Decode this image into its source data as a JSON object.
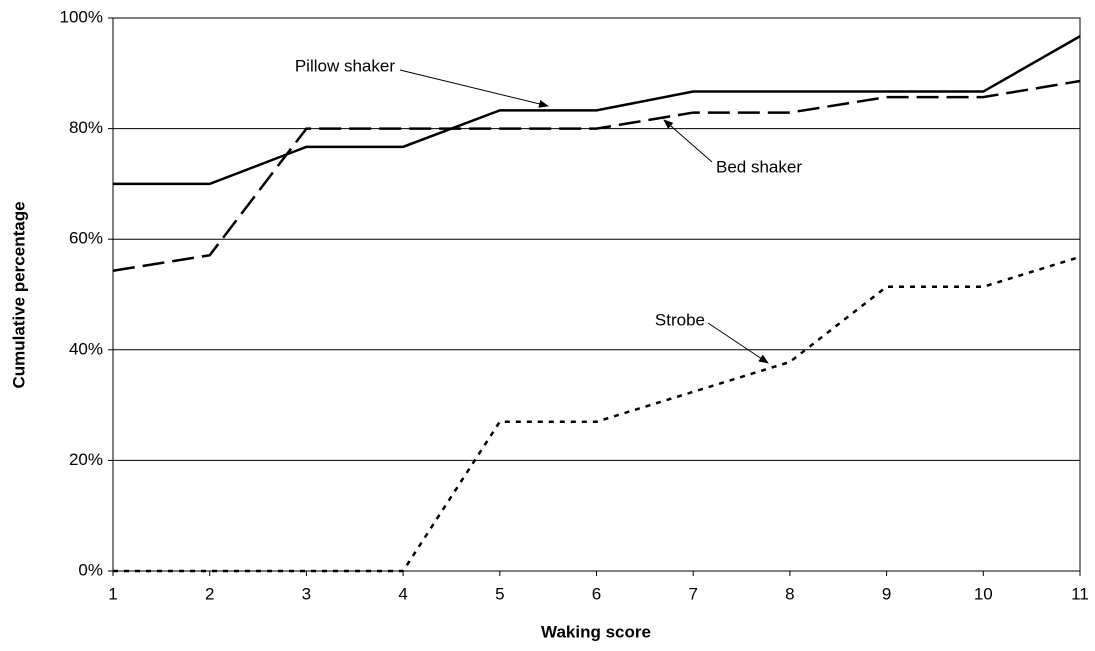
{
  "chart_data": {
    "type": "line",
    "xlabel": "Waking score",
    "ylabel": "Cumulative percentage",
    "x": [
      1,
      2,
      3,
      4,
      5,
      6,
      7,
      8,
      9,
      10,
      11
    ],
    "xlim": [
      1,
      11
    ],
    "xticks": [
      1,
      2,
      3,
      4,
      5,
      6,
      7,
      8,
      9,
      10,
      11
    ],
    "ylim": [
      0,
      100
    ],
    "yticks": [
      {
        "value": 0,
        "label": "0%"
      },
      {
        "value": 20,
        "label": "20%"
      },
      {
        "value": 40,
        "label": "40%"
      },
      {
        "value": 60,
        "label": "60%"
      },
      {
        "value": 80,
        "label": "80%"
      },
      {
        "value": 100,
        "label": "100%"
      }
    ],
    "grid": true,
    "series": [
      {
        "name": "Pillow shaker",
        "color": "#000000",
        "dash": "solid",
        "values": [
          70,
          70,
          76.7,
          76.7,
          83.3,
          83.3,
          86.7,
          86.7,
          86.7,
          86.7,
          96.7
        ]
      },
      {
        "name": "Bed shaker",
        "color": "#000000",
        "dash": "dashed",
        "values": [
          54.3,
          57.1,
          80,
          80,
          80,
          80,
          82.9,
          82.9,
          85.7,
          85.7,
          88.6
        ]
      },
      {
        "name": "Strobe",
        "color": "#000000",
        "dash": "dotted",
        "values": [
          0,
          0,
          0,
          0,
          27,
          27,
          32.4,
          37.8,
          51.4,
          51.4,
          56.8
        ]
      }
    ]
  }
}
